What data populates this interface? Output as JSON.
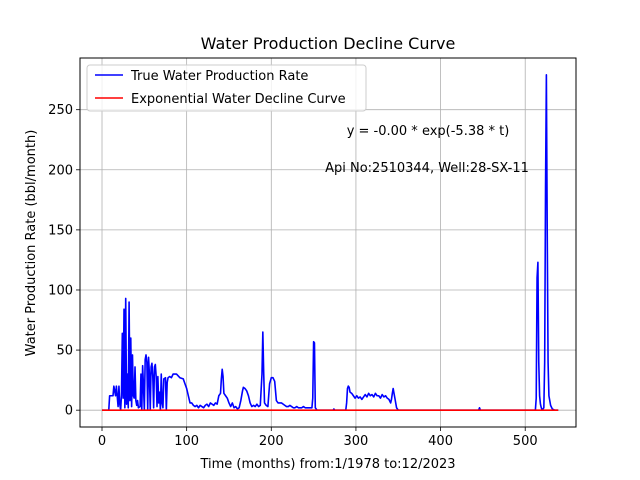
{
  "chart_data": {
    "type": "line",
    "title": "Water Production Decline Curve",
    "xlabel": "Time (months) from:1/1978 to:12/2023",
    "ylabel": "Water Production Rate (bbl/month)",
    "xlim": [
      -26,
      560
    ],
    "ylim": [
      -14,
      293
    ],
    "xticks": [
      0,
      100,
      200,
      300,
      400,
      500
    ],
    "yticks": [
      0,
      50,
      100,
      150,
      200,
      250
    ],
    "grid": true,
    "legend_position": "top-left",
    "annotations": [
      "y = -0.00 * exp(-5.38 * t)",
      "Api No:2510344, Well:28-SX-11"
    ],
    "series": [
      {
        "name": "True Water Production Rate",
        "color": "#0000ff",
        "points": [
          [
            0,
            0
          ],
          [
            8,
            0
          ],
          [
            9,
            12
          ],
          [
            13,
            12
          ],
          [
            14,
            20
          ],
          [
            16,
            12
          ],
          [
            17,
            20
          ],
          [
            19,
            3
          ],
          [
            20,
            20
          ],
          [
            21,
            5
          ],
          [
            22,
            0
          ],
          [
            23,
            12
          ],
          [
            24,
            64
          ],
          [
            25,
            10
          ],
          [
            26,
            84
          ],
          [
            27,
            2
          ],
          [
            28,
            93
          ],
          [
            29,
            5
          ],
          [
            30,
            30
          ],
          [
            31,
            2
          ],
          [
            32,
            90
          ],
          [
            33,
            8
          ],
          [
            34,
            60
          ],
          [
            35,
            3
          ],
          [
            36,
            46
          ],
          [
            37,
            12
          ],
          [
            38,
            10
          ],
          [
            39,
            36
          ],
          [
            40,
            8
          ],
          [
            41,
            4
          ],
          [
            42,
            8
          ],
          [
            43,
            2
          ],
          [
            45,
            3
          ],
          [
            46,
            30
          ],
          [
            47,
            0
          ],
          [
            48,
            37
          ],
          [
            49,
            20
          ],
          [
            50,
            0
          ],
          [
            51,
            42
          ],
          [
            52,
            46
          ],
          [
            53,
            40
          ],
          [
            54,
            0
          ],
          [
            55,
            44
          ],
          [
            56,
            30
          ],
          [
            57,
            0
          ],
          [
            58,
            36
          ],
          [
            59,
            39
          ],
          [
            60,
            28
          ],
          [
            61,
            2
          ],
          [
            62,
            36
          ],
          [
            63,
            38
          ],
          [
            64,
            28
          ],
          [
            65,
            3
          ],
          [
            66,
            28
          ],
          [
            67,
            6
          ],
          [
            68,
            15
          ],
          [
            69,
            0
          ],
          [
            70,
            30
          ],
          [
            71,
            6
          ],
          [
            72,
            2
          ],
          [
            73,
            26
          ],
          [
            75,
            27
          ],
          [
            76,
            0
          ],
          [
            77,
            23
          ],
          [
            78,
            27
          ],
          [
            80,
            28
          ],
          [
            82,
            27
          ],
          [
            84,
            30
          ],
          [
            88,
            30
          ],
          [
            92,
            27
          ],
          [
            96,
            26
          ],
          [
            98,
            22
          ],
          [
            100,
            18
          ],
          [
            102,
            12
          ],
          [
            104,
            6
          ],
          [
            106,
            6
          ],
          [
            108,
            4
          ],
          [
            110,
            3
          ],
          [
            112,
            4
          ],
          [
            114,
            2
          ],
          [
            116,
            4
          ],
          [
            118,
            3
          ],
          [
            120,
            2
          ],
          [
            122,
            4
          ],
          [
            124,
            5
          ],
          [
            126,
            3
          ],
          [
            128,
            6
          ],
          [
            130,
            5
          ],
          [
            132,
            4
          ],
          [
            134,
            6
          ],
          [
            136,
            5
          ],
          [
            138,
            12
          ],
          [
            140,
            14
          ],
          [
            141,
            26
          ],
          [
            142,
            34
          ],
          [
            143,
            28
          ],
          [
            144,
            14
          ],
          [
            146,
            12
          ],
          [
            148,
            10
          ],
          [
            150,
            6
          ],
          [
            152,
            3
          ],
          [
            154,
            6
          ],
          [
            156,
            2
          ],
          [
            158,
            3
          ],
          [
            160,
            1
          ],
          [
            162,
            2
          ],
          [
            164,
            8
          ],
          [
            166,
            16
          ],
          [
            167,
            19
          ],
          [
            169,
            18
          ],
          [
            171,
            16
          ],
          [
            173,
            12
          ],
          [
            175,
            6
          ],
          [
            177,
            3
          ],
          [
            179,
            4
          ],
          [
            181,
            3
          ],
          [
            183,
            5
          ],
          [
            185,
            3
          ],
          [
            187,
            4
          ],
          [
            189,
            30
          ],
          [
            190,
            65
          ],
          [
            191,
            32
          ],
          [
            192,
            6
          ],
          [
            194,
            4
          ],
          [
            196,
            3
          ],
          [
            198,
            22
          ],
          [
            200,
            27
          ],
          [
            202,
            27
          ],
          [
            204,
            24
          ],
          [
            206,
            8
          ],
          [
            208,
            6
          ],
          [
            210,
            6
          ],
          [
            212,
            6
          ],
          [
            214,
            5
          ],
          [
            216,
            4
          ],
          [
            218,
            3
          ],
          [
            220,
            3
          ],
          [
            222,
            4
          ],
          [
            224,
            3
          ],
          [
            226,
            2
          ],
          [
            228,
            2
          ],
          [
            230,
            3
          ],
          [
            232,
            2
          ],
          [
            234,
            2
          ],
          [
            236,
            2
          ],
          [
            238,
            3
          ],
          [
            240,
            2
          ],
          [
            242,
            2
          ],
          [
            244,
            2
          ],
          [
            246,
            2
          ],
          [
            248,
            2
          ],
          [
            249,
            10
          ],
          [
            250,
            57
          ],
          [
            251,
            56
          ],
          [
            252,
            2
          ],
          [
            253,
            1
          ],
          [
            254,
            0
          ],
          [
            260,
            0
          ],
          [
            270,
            0
          ],
          [
            273,
            0
          ],
          [
            274,
            1
          ],
          [
            275,
            0
          ],
          [
            285,
            0
          ],
          [
            288,
            0
          ],
          [
            289,
            6
          ],
          [
            290,
            18
          ],
          [
            291,
            20
          ],
          [
            292,
            19
          ],
          [
            293,
            15
          ],
          [
            295,
            14
          ],
          [
            297,
            12
          ],
          [
            299,
            10
          ],
          [
            301,
            12
          ],
          [
            303,
            10
          ],
          [
            305,
            11
          ],
          [
            307,
            9
          ],
          [
            309,
            11
          ],
          [
            311,
            13
          ],
          [
            313,
            11
          ],
          [
            315,
            14
          ],
          [
            317,
            12
          ],
          [
            319,
            13
          ],
          [
            321,
            11
          ],
          [
            323,
            14
          ],
          [
            325,
            12
          ],
          [
            327,
            12
          ],
          [
            329,
            10
          ],
          [
            331,
            13
          ],
          [
            333,
            11
          ],
          [
            335,
            12
          ],
          [
            337,
            10
          ],
          [
            339,
            9
          ],
          [
            341,
            6
          ],
          [
            342,
            9
          ],
          [
            343,
            14
          ],
          [
            344,
            18
          ],
          [
            345,
            14
          ],
          [
            346,
            10
          ],
          [
            348,
            2
          ],
          [
            350,
            0
          ],
          [
            360,
            0
          ],
          [
            380,
            0
          ],
          [
            400,
            0
          ],
          [
            420,
            0
          ],
          [
            440,
            0
          ],
          [
            445,
            0
          ],
          [
            446,
            2
          ],
          [
            447,
            0
          ],
          [
            460,
            0
          ],
          [
            480,
            0
          ],
          [
            500,
            0
          ],
          [
            510,
            0
          ],
          [
            512,
            0
          ],
          [
            513,
            10
          ],
          [
            514,
            110
          ],
          [
            515,
            123
          ],
          [
            516,
            40
          ],
          [
            517,
            12
          ],
          [
            518,
            5
          ],
          [
            519,
            2
          ],
          [
            520,
            0
          ],
          [
            522,
            2
          ],
          [
            523,
            40
          ],
          [
            524,
            185
          ],
          [
            525,
            279
          ],
          [
            526,
            150
          ],
          [
            527,
            40
          ],
          [
            528,
            12
          ],
          [
            530,
            4
          ],
          [
            532,
            1
          ],
          [
            535,
            0
          ],
          [
            539,
            0
          ]
        ]
      },
      {
        "name": "Exponential Water Decline Curve",
        "color": "#ff0000",
        "points": [
          [
            0,
            0
          ],
          [
            539,
            0
          ]
        ]
      }
    ]
  }
}
